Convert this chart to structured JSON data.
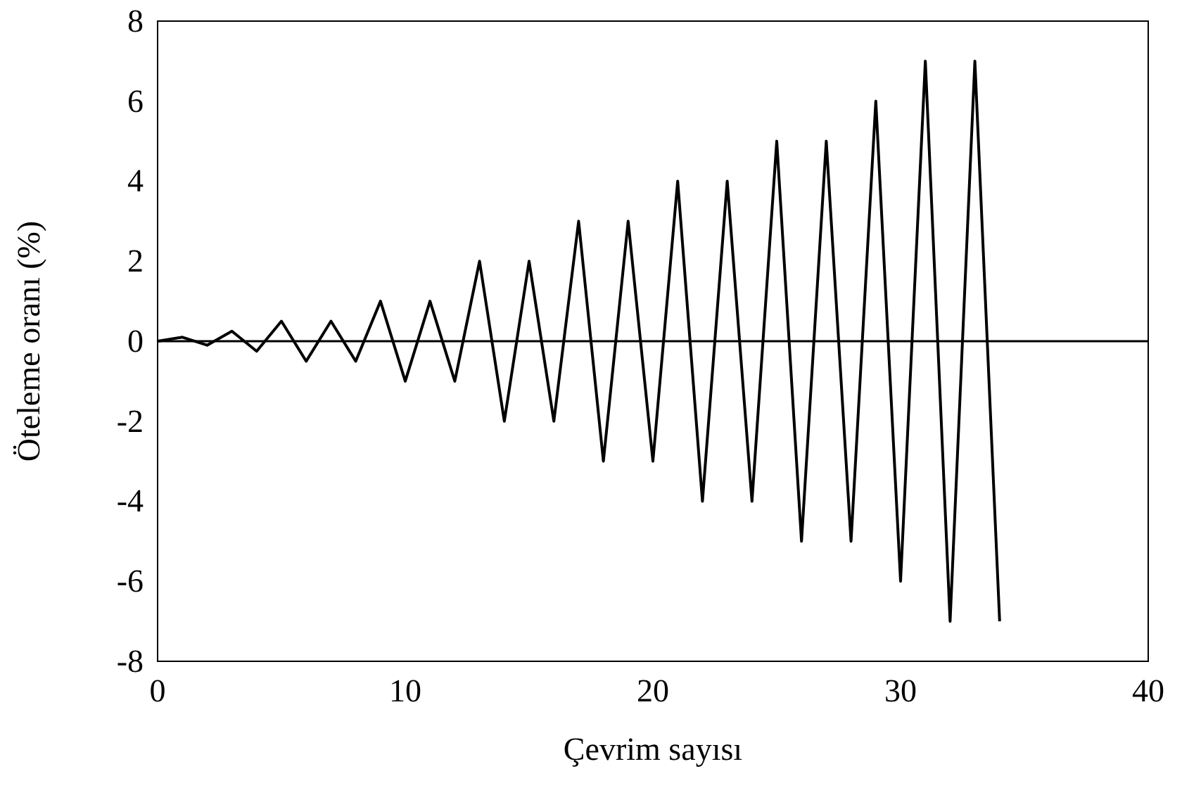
{
  "chart_data": {
    "type": "line",
    "xlabel": "Çevrim sayısı",
    "ylabel": "Öteleme oranı (%)",
    "x": [
      0,
      1,
      2,
      3,
      4,
      5,
      6,
      7,
      8,
      9,
      10,
      11,
      12,
      13,
      14,
      15,
      16,
      17,
      18,
      19,
      20,
      21,
      22,
      23,
      24,
      25,
      26,
      27,
      28,
      29,
      30,
      31,
      32,
      33,
      34
    ],
    "series": [
      {
        "color": "#000000",
        "values": [
          0,
          0.1,
          -0.1,
          0.25,
          -0.25,
          0.5,
          -0.5,
          0.5,
          -0.5,
          1,
          -1,
          1,
          -1,
          2,
          -2,
          2,
          -2,
          3,
          -3,
          3,
          -3,
          4,
          -4,
          4,
          -4,
          5,
          -5,
          5,
          -5,
          6,
          -6,
          7,
          -7,
          7,
          -7
        ]
      }
    ],
    "xlim": [
      0,
      40
    ],
    "xticks": [
      0,
      10,
      20,
      30,
      40
    ],
    "ylim": [
      -8,
      8
    ],
    "yticks": [
      -8,
      -6,
      -4,
      -2,
      0,
      2,
      4,
      6,
      8
    ],
    "ref_lines": [
      {
        "axis": "y",
        "value": 0,
        "color": "#000000"
      }
    ],
    "marker": "none",
    "line_style": "solid"
  }
}
